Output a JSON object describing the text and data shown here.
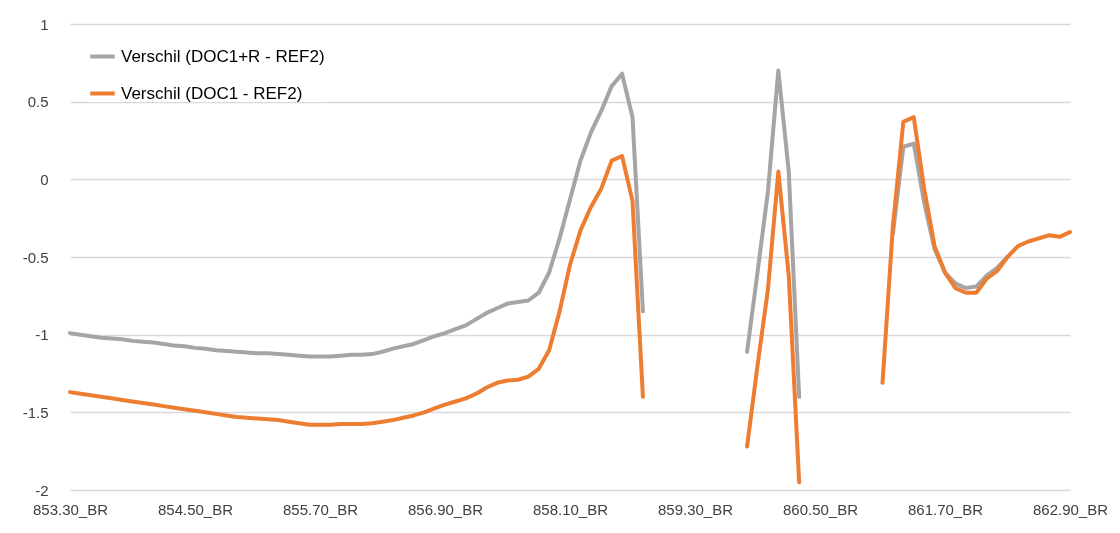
{
  "chart_data": {
    "type": "line",
    "categories": [
      "853.30_BR",
      null,
      null,
      null,
      null,
      null,
      null,
      null,
      null,
      null,
      null,
      null,
      "854.50_BR",
      null,
      null,
      null,
      null,
      null,
      null,
      null,
      null,
      null,
      null,
      null,
      "855.70_BR",
      null,
      null,
      null,
      null,
      null,
      null,
      null,
      null,
      null,
      null,
      null,
      "856.90_BR",
      null,
      null,
      null,
      null,
      null,
      null,
      null,
      null,
      null,
      null,
      null,
      "858.10_BR",
      null,
      null,
      null,
      null,
      null,
      null,
      null,
      null,
      null,
      null,
      null,
      "859.30_BR",
      null,
      null,
      null,
      null,
      null,
      null,
      null,
      null,
      null,
      null,
      null,
      "860.50_BR",
      null,
      null,
      null,
      null,
      null,
      null,
      null,
      null,
      null,
      null,
      null,
      "861.70_BR",
      null,
      null,
      null,
      null,
      null,
      null,
      null,
      null,
      null,
      null,
      null,
      "862.90_BR"
    ],
    "series": [
      {
        "name": "Verschil (DOC1+R - REF2)",
        "color": "#a5a5a5",
        "values": [
          -0.99,
          -1.0,
          -1.01,
          -1.02,
          -1.025,
          -1.03,
          -1.04,
          -1.045,
          -1.05,
          -1.06,
          -1.07,
          -1.075,
          -1.085,
          -1.09,
          -1.1,
          -1.105,
          -1.11,
          -1.115,
          -1.12,
          -1.12,
          -1.125,
          -1.13,
          -1.135,
          -1.14,
          -1.14,
          -1.14,
          -1.135,
          -1.13,
          -1.13,
          -1.125,
          -1.11,
          -1.09,
          -1.075,
          -1.06,
          -1.035,
          -1.01,
          -0.99,
          -0.965,
          -0.94,
          -0.9,
          -0.86,
          -0.83,
          -0.8,
          -0.79,
          -0.78,
          -0.73,
          -0.6,
          -0.38,
          -0.13,
          0.12,
          0.3,
          0.44,
          0.6,
          0.68,
          0.4,
          -0.85,
          null,
          null,
          null,
          null,
          null,
          null,
          null,
          null,
          null,
          -1.11,
          -0.6,
          -0.08,
          0.7,
          0.05,
          -1.4,
          null,
          null,
          null,
          null,
          null,
          null,
          null,
          null,
          -0.35,
          0.21,
          0.23,
          -0.15,
          -0.45,
          -0.6,
          -0.67,
          -0.7,
          -0.69,
          -0.62,
          -0.57,
          -0.5,
          null,
          null,
          null,
          null,
          null,
          null
        ]
      },
      {
        "name": "Verschil (DOC1 - REF2)",
        "color": "#ed7d31",
        "values": [
          -1.37,
          -1.38,
          -1.39,
          -1.4,
          -1.41,
          -1.42,
          -1.43,
          -1.44,
          -1.45,
          -1.46,
          -1.47,
          -1.48,
          -1.49,
          -1.5,
          -1.51,
          -1.52,
          -1.53,
          -1.535,
          -1.54,
          -1.545,
          -1.55,
          -1.56,
          -1.57,
          -1.58,
          -1.58,
          -1.58,
          -1.575,
          -1.575,
          -1.575,
          -1.57,
          -1.56,
          -1.55,
          -1.535,
          -1.52,
          -1.5,
          -1.475,
          -1.45,
          -1.43,
          -1.41,
          -1.38,
          -1.34,
          -1.31,
          -1.295,
          -1.29,
          -1.27,
          -1.22,
          -1.1,
          -0.85,
          -0.55,
          -0.33,
          -0.18,
          -0.06,
          0.12,
          0.15,
          -0.14,
          -1.4,
          null,
          null,
          null,
          null,
          null,
          null,
          null,
          null,
          null,
          -1.72,
          -1.2,
          -0.71,
          0.05,
          -0.62,
          -1.95,
          null,
          null,
          null,
          null,
          null,
          null,
          null,
          -1.31,
          -0.3,
          0.37,
          0.4,
          -0.06,
          -0.43,
          -0.6,
          -0.7,
          -0.73,
          -0.73,
          -0.64,
          -0.59,
          -0.5,
          -0.43,
          -0.4,
          -0.38,
          -0.36,
          -0.37,
          -0.34
        ]
      }
    ],
    "ylim": [
      -2,
      1
    ],
    "yticks": [
      -2,
      -1.5,
      -1,
      -0.5,
      0,
      0.5,
      1
    ],
    "grid": "y",
    "legend": "top left"
  }
}
